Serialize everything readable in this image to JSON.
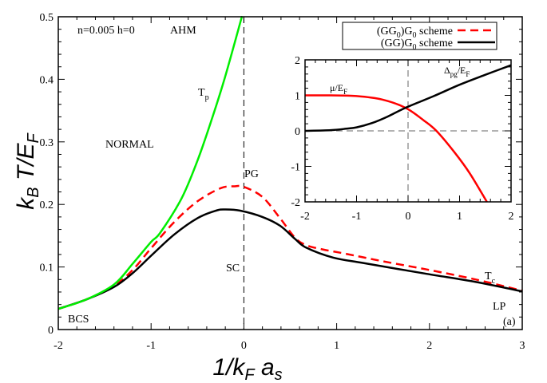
{
  "chart_data": [
    {
      "type": "line",
      "xlabel": "1/k_F a_s",
      "ylabel": "k_B T/E_F",
      "xlim": [
        -2,
        3
      ],
      "ylim": [
        0,
        0.5
      ],
      "xticks": [
        "-2",
        "-1",
        "0",
        "1",
        "2",
        "3"
      ],
      "yticks": [
        "0",
        "0.1",
        "0.2",
        "0.3",
        "0.4",
        "0.5"
      ],
      "grid": false,
      "legend_placement": "top-right",
      "annotations": {
        "params": "n=0.005 h=0",
        "model": "AHM",
        "normal": "NORMAL",
        "tp": "T",
        "tp_sub": "p",
        "pg": "PG",
        "sc": "SC",
        "tc": "T",
        "tc_sub": "c",
        "lp": "LP",
        "bcs": "BCS",
        "panel": "(a)"
      },
      "series": [
        {
          "name": "(GG0)G0 scheme",
          "legend": "(GG",
          "legend_sub1": "0",
          "legend_mid": ")G",
          "legend_sub2": "0",
          "legend_tail": " scheme",
          "color": "#ff0000",
          "dash": true,
          "x": [
            -2,
            -1.7,
            -1.4,
            -1.2,
            -1,
            -0.75,
            -0.5,
            -0.25,
            -0.1,
            0,
            0.2,
            0.39,
            0.55,
            0.67,
            0.85,
            1.1,
            1.5,
            1.97,
            2.5,
            3
          ],
          "y": [
            0.033,
            0.048,
            0.07,
            0.095,
            0.13,
            0.172,
            0.205,
            0.226,
            0.229,
            0.228,
            0.212,
            0.178,
            0.147,
            0.135,
            0.128,
            0.121,
            0.109,
            0.096,
            0.08,
            0.062
          ]
        },
        {
          "name": "(GG)G0 scheme",
          "legend": "(GG)G",
          "legend_sub": "0",
          "legend_tail": " scheme",
          "color": "#000000",
          "dash": false,
          "x": [
            -2,
            -1.7,
            -1.4,
            -1.2,
            -1,
            -0.75,
            -0.5,
            -0.3,
            -0.2,
            -0.04,
            0.2,
            0.39,
            0.55,
            0.67,
            0.96,
            1.3,
            1.97,
            2.5,
            3
          ],
          "y": [
            0.033,
            0.048,
            0.068,
            0.09,
            0.118,
            0.152,
            0.178,
            0.19,
            0.192,
            0.19,
            0.18,
            0.166,
            0.145,
            0.131,
            0.115,
            0.106,
            0.089,
            0.076,
            0.061
          ]
        },
        {
          "name": "T_p",
          "color": "#00ee00",
          "dash": false,
          "x": [
            -2,
            -1.7,
            -1.4,
            -1.2,
            -1,
            -0.9,
            -0.67,
            -0.5,
            -0.36,
            -0.21,
            -0.02
          ],
          "y": [
            0.033,
            0.048,
            0.072,
            0.105,
            0.14,
            0.155,
            0.21,
            0.27,
            0.33,
            0.4,
            0.501
          ]
        }
      ]
    },
    {
      "type": "line",
      "xlim": [
        -2,
        2
      ],
      "ylim": [
        -2,
        2
      ],
      "xticks": [
        "-2",
        "-1",
        "0",
        "1",
        "2"
      ],
      "yticks": [
        "-2",
        "-1",
        "0",
        "1",
        "2"
      ],
      "annotations": {
        "mu": "μ/E",
        "mu_sub": "F",
        "delta": "Δ",
        "delta_sub": "pg",
        "delta_mid": "/E",
        "delta_sub2": "F"
      },
      "series": [
        {
          "name": "μ/E_F",
          "color": "#ff0000",
          "x": [
            -2,
            -1.5,
            -1,
            -0.5,
            -0.05,
            0.3,
            0.55,
            0.9,
            1.2,
            1.53
          ],
          "y": [
            1,
            1,
            0.98,
            0.88,
            0.65,
            0.3,
            0,
            -0.6,
            -1.2,
            -2
          ]
        },
        {
          "name": "Δpg/E_F",
          "color": "#000000",
          "x": [
            -2,
            -1.5,
            -1.2,
            -1,
            -0.7,
            -0.4,
            -0.05,
            0.5,
            1,
            1.5,
            2
          ],
          "y": [
            0,
            0.02,
            0.06,
            0.1,
            0.22,
            0.4,
            0.65,
            0.98,
            1.3,
            1.58,
            1.85
          ]
        }
      ]
    }
  ]
}
